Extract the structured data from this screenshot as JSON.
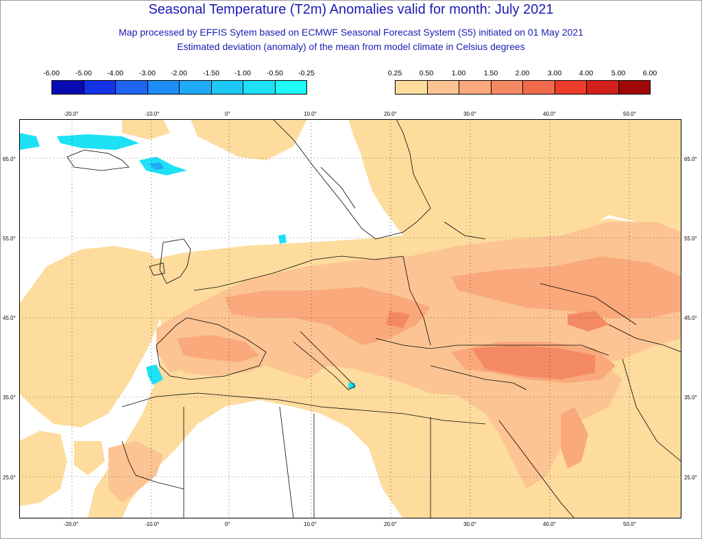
{
  "title": "Seasonal Temperature (T2m) Anomalies valid for month: July 2021",
  "subtitle1": "Map processed by EFFIS Sytem based on ECMWF Seasonal Forecast System (S5) initiated on 01 May 2021",
  "subtitle2": "Estimated deviation (anomaly) of the mean from model climate in Celsius degrees",
  "legend": {
    "cold": {
      "labels": [
        "-6.00",
        "-5.00",
        "-4.00",
        "-3.00",
        "-2.00",
        "-1.50",
        "-1.00",
        "-0.50",
        "-0.25"
      ],
      "colors": [
        "#0a0ab4",
        "#1432e6",
        "#1e64f0",
        "#1e8cf5",
        "#1eaaf5",
        "#1ec8f5",
        "#1ee1f5",
        "#1efaf5"
      ]
    },
    "warm": {
      "labels": [
        "0.25",
        "0.50",
        "1.00",
        "1.50",
        "2.00",
        "3.00",
        "4.00",
        "5.00",
        "6.00"
      ],
      "colors": [
        "#fddc9e",
        "#fcc493",
        "#f9a97c",
        "#f48a64",
        "#f06a4c",
        "#ec3c2c",
        "#d2201c",
        "#a00808"
      ]
    }
  },
  "axes": {
    "lon_labels": [
      "-20.0°",
      "-10.0°",
      "0°",
      "10.0°",
      "20.0°",
      "30.0°",
      "40.0°",
      "50.0°"
    ],
    "lat_labels": [
      "65.0°",
      "55.0°",
      "45.0°",
      "35.0°",
      "25.0°"
    ]
  },
  "colors": {
    "title": "#1a1ab4",
    "land_outline": "#000000",
    "grid": "#000000"
  }
}
